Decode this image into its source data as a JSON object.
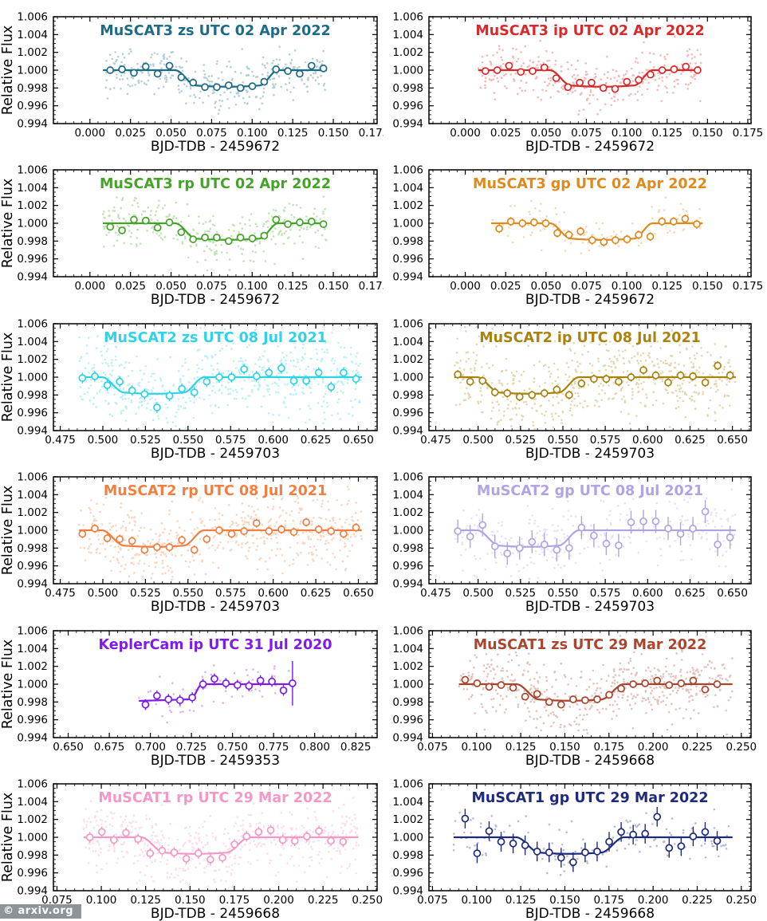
{
  "watermark": {
    "text": "© arxiv.org",
    "bg_color": "#8e9398",
    "text_color": "#ffffff"
  },
  "y_axis": {
    "label": "Relative Flux",
    "tick_labels": [
      "0.994",
      "0.996",
      "0.998",
      "1.000",
      "1.002",
      "1.004",
      "1.006"
    ],
    "range": [
      0.994,
      1.006
    ]
  },
  "chart_data": [
    {
      "type": "scatter",
      "title": "MuSCAT3 zs UTC 02 Apr 2022",
      "color": "#1e6b85",
      "column": "left",
      "xlabel": "BJD-TDB - 2459672",
      "ylabel": "Relative Flux",
      "x_range": [
        -0.0225,
        0.177
      ],
      "x_tick_labels": [
        "0.000",
        "0.025",
        "0.050",
        "0.075",
        "0.100",
        "0.125",
        "0.150",
        "0.175"
      ],
      "model": {
        "x_start": 0.008,
        "t1": 0.0525,
        "t2": 0.0655,
        "t3": 0.1045,
        "t4": 0.116,
        "x_end": 0.146,
        "depth_edge": 0.00172,
        "depth_extra": 0.00014
      },
      "binned_x": [
        0.0125,
        0.0198,
        0.0271,
        0.0344,
        0.0417,
        0.049,
        0.0563,
        0.0636,
        0.0709,
        0.0782,
        0.0855,
        0.0928,
        0.1001,
        0.1074,
        0.1147,
        0.122,
        0.1293,
        0.1366,
        0.1439
      ],
      "binned_y": [
        1.0,
        1.0001,
        0.9997,
        1.0004,
        0.9996,
        1.0005,
        0.9992,
        0.9986,
        0.9981,
        0.9981,
        0.9983,
        0.998,
        0.9982,
        0.9987,
        1.0001,
        0.9999,
        0.9996,
        1.0005,
        1.0002
      ],
      "binned_yerr": 0.0002,
      "scatter_noise": {
        "n": 340,
        "sigma": 0.0013,
        "seed": 101
      }
    },
    {
      "type": "scatter",
      "title": "MuSCAT3 ip UTC 02 Apr 2022",
      "color": "#d8292b",
      "column": "right",
      "xlabel": "BJD-TDB - 2459672",
      "ylabel": "",
      "x_range": [
        -0.0225,
        0.177
      ],
      "x_tick_labels": [
        "0.000",
        "0.025",
        "0.050",
        "0.075",
        "0.100",
        "0.125",
        "0.150",
        "0.175"
      ],
      "model": {
        "x_start": 0.008,
        "t1": 0.0525,
        "t2": 0.0655,
        "t3": 0.1045,
        "t4": 0.116,
        "x_end": 0.146,
        "depth_edge": 0.00172,
        "depth_extra": 0.00014
      },
      "binned_x": [
        0.0125,
        0.0198,
        0.0271,
        0.0344,
        0.0417,
        0.049,
        0.0563,
        0.0636,
        0.0709,
        0.0782,
        0.0855,
        0.0928,
        0.1001,
        0.1074,
        0.1147,
        0.122,
        0.1293,
        0.1366,
        0.1439
      ],
      "binned_y": [
        0.9999,
        1.0,
        1.0005,
        0.9998,
        0.9999,
        1.0003,
        0.9991,
        0.9981,
        0.9986,
        0.9986,
        0.998,
        0.9979,
        0.9987,
        0.9989,
        0.9995,
        1.0,
        1.0001,
        1.0004,
        1.0
      ],
      "binned_yerr": 0.0004,
      "scatter_noise": {
        "n": 340,
        "sigma": 0.0014,
        "seed": 102
      }
    },
    {
      "type": "scatter",
      "title": "MuSCAT3 rp UTC 02 Apr 2022",
      "color": "#46a32a",
      "column": "left",
      "xlabel": "BJD-TDB - 2459672",
      "ylabel": "Relative Flux",
      "x_range": [
        -0.0225,
        0.177
      ],
      "x_tick_labels": [
        "0.000",
        "0.025",
        "0.050",
        "0.075",
        "0.100",
        "0.125",
        "0.150",
        "0.175"
      ],
      "model": {
        "x_start": 0.008,
        "t1": 0.0525,
        "t2": 0.0655,
        "t3": 0.1045,
        "t4": 0.116,
        "x_end": 0.146,
        "depth_edge": 0.00172,
        "depth_extra": 0.00014
      },
      "binned_x": [
        0.0125,
        0.0198,
        0.0271,
        0.0344,
        0.0417,
        0.049,
        0.0563,
        0.0636,
        0.0709,
        0.0782,
        0.0855,
        0.0928,
        0.1001,
        0.1074,
        0.1147,
        0.122,
        0.1293,
        0.1366,
        0.1439
      ],
      "binned_y": [
        0.9996,
        0.9992,
        1.0004,
        1.0003,
        0.9995,
        1.0001,
        0.999,
        0.9982,
        0.9984,
        0.9984,
        0.998,
        0.9984,
        0.9983,
        0.9986,
        1.0004,
        0.9999,
        1.0001,
        1.0002,
        0.9999
      ],
      "binned_yerr": 0.0004,
      "scatter_noise": {
        "n": 320,
        "sigma": 0.0013,
        "seed": 103
      }
    },
    {
      "type": "scatter",
      "title": "MuSCAT3 gp UTC 02 Apr 2022",
      "color": "#dd8a1e",
      "column": "right",
      "xlabel": "BJD-TDB - 2459672",
      "ylabel": "",
      "x_range": [
        -0.0225,
        0.177
      ],
      "x_tick_labels": [
        "0.000",
        "0.025",
        "0.050",
        "0.075",
        "0.100",
        "0.125",
        "0.150",
        "0.175"
      ],
      "model": {
        "x_start": 0.016,
        "t1": 0.0525,
        "t2": 0.0655,
        "t3": 0.1045,
        "t4": 0.116,
        "x_end": 0.147,
        "depth_edge": 0.00172,
        "depth_extra": 0.00014
      },
      "binned_x": [
        0.021,
        0.0282,
        0.0354,
        0.0426,
        0.0498,
        0.057,
        0.0642,
        0.0714,
        0.0786,
        0.0858,
        0.093,
        0.1002,
        0.1074,
        0.1146,
        0.1218,
        0.129,
        0.1362,
        0.1434
      ],
      "binned_y": [
        0.9994,
        1.0002,
        1.0,
        1.0001,
        1.0,
        0.9989,
        0.9987,
        0.9991,
        0.9981,
        0.9979,
        0.9981,
        0.9982,
        0.9987,
        0.9985,
        1.0002,
        1.0002,
        1.0005,
        0.9999
      ],
      "binned_yerr": 0.0005,
      "scatter_noise": {
        "n": 100,
        "sigma": 0.0011,
        "seed": 104
      }
    },
    {
      "type": "scatter",
      "title": "MuSCAT2 zs UTC 08 Jul 2021",
      "color": "#2ed3e6",
      "column": "left",
      "xlabel": "BJD-TDB - 2459703",
      "ylabel": "Relative Flux",
      "x_range": [
        0.471,
        0.661
      ],
      "x_tick_labels": [
        "0.475",
        "0.500",
        "0.525",
        "0.550",
        "0.575",
        "0.600",
        "0.625",
        "0.650"
      ],
      "model": {
        "x_start": 0.486,
        "t1": 0.4995,
        "t2": 0.5125,
        "t3": 0.5475,
        "t4": 0.5595,
        "x_end": 0.652,
        "depth_edge": 0.00172,
        "depth_extra": 0.00014
      },
      "binned_x": [
        0.488,
        0.4953,
        0.5026,
        0.5099,
        0.5172,
        0.5245,
        0.5318,
        0.5391,
        0.5464,
        0.5537,
        0.561,
        0.5683,
        0.5756,
        0.5829,
        0.5902,
        0.5975,
        0.6048,
        0.6121,
        0.6194,
        0.6267,
        0.634,
        0.6413,
        0.6486
      ],
      "binned_y": [
        0.9999,
        1.0001,
        0.9991,
        0.9995,
        0.9985,
        0.9981,
        0.9966,
        0.9979,
        0.9987,
        0.9983,
        0.9995,
        1.0,
        1.0,
        1.0009,
        1.0001,
        1.0005,
        1.001,
        0.9996,
        0.9996,
        1.0005,
        0.9989,
        1.0005,
        0.9998
      ],
      "binned_yerr": 0.0006,
      "scatter_noise": {
        "n": 560,
        "sigma": 0.0022,
        "seed": 105
      }
    },
    {
      "type": "scatter",
      "title": "MuSCAT2 ip UTC 08 Jul 2021",
      "color": "#a9830f",
      "column": "right",
      "xlabel": "BJD-TDB - 2459703",
      "ylabel": "",
      "x_range": [
        0.471,
        0.661
      ],
      "x_tick_labels": [
        "0.475",
        "0.500",
        "0.525",
        "0.550",
        "0.575",
        "0.600",
        "0.625",
        "0.650"
      ],
      "model": {
        "x_start": 0.486,
        "t1": 0.4995,
        "t2": 0.5125,
        "t3": 0.5475,
        "t4": 0.5595,
        "x_end": 0.652,
        "depth_edge": 0.00172,
        "depth_extra": 0.00014
      },
      "binned_x": [
        0.488,
        0.4953,
        0.5026,
        0.5099,
        0.5172,
        0.5245,
        0.5318,
        0.5391,
        0.5464,
        0.5537,
        0.561,
        0.5683,
        0.5756,
        0.5829,
        0.5902,
        0.5975,
        0.6048,
        0.6121,
        0.6194,
        0.6267,
        0.634,
        0.6413,
        0.6486
      ],
      "binned_y": [
        1.0003,
        0.9995,
        0.9996,
        0.9983,
        0.9982,
        0.9978,
        0.998,
        0.9982,
        0.9986,
        0.998,
        0.9993,
        0.9998,
        0.9998,
        0.9995,
        1.0,
        1.0008,
        1.0002,
        0.9994,
        1.0002,
        1.0001,
        0.9994,
        1.0013,
        1.0002
      ],
      "binned_yerr": 0.0005,
      "scatter_noise": {
        "n": 560,
        "sigma": 0.0022,
        "seed": 106
      }
    },
    {
      "type": "scatter",
      "title": "MuSCAT2 rp UTC 08 Jul 2021",
      "color": "#f07f42",
      "column": "left",
      "xlabel": "BJD-TDB - 2459703",
      "ylabel": "Relative Flux",
      "x_range": [
        0.471,
        0.661
      ],
      "x_tick_labels": [
        "0.475",
        "0.500",
        "0.525",
        "0.550",
        "0.575",
        "0.600",
        "0.625",
        "0.650"
      ],
      "model": {
        "x_start": 0.486,
        "t1": 0.4995,
        "t2": 0.5125,
        "t3": 0.5475,
        "t4": 0.5595,
        "x_end": 0.652,
        "depth_edge": 0.00172,
        "depth_extra": 0.00014
      },
      "binned_x": [
        0.488,
        0.4953,
        0.5026,
        0.5099,
        0.5172,
        0.5245,
        0.5318,
        0.5391,
        0.5464,
        0.5537,
        0.561,
        0.5683,
        0.5756,
        0.5829,
        0.5902,
        0.5975,
        0.6048,
        0.6121,
        0.6194,
        0.6267,
        0.634,
        0.6413,
        0.6486
      ],
      "binned_y": [
        0.9996,
        1.0002,
        0.9991,
        0.999,
        0.9988,
        0.9978,
        0.9981,
        0.9981,
        0.9989,
        0.9978,
        0.999,
        1.0,
        0.9996,
        0.9999,
        1.0008,
        0.9999,
        1.0001,
        0.9998,
        1.0009,
        1.0001,
        0.9999,
        0.9996,
        1.0003
      ],
      "binned_yerr": 0.0005,
      "scatter_noise": {
        "n": 540,
        "sigma": 0.0021,
        "seed": 107
      }
    },
    {
      "type": "scatter",
      "title": "MuSCAT2 gp UTC 08 Jul 2021",
      "color": "#b3a3e3",
      "column": "right",
      "xlabel": "BJD-TDB - 2459703",
      "ylabel": "",
      "x_range": [
        0.471,
        0.661
      ],
      "x_tick_labels": [
        "0.475",
        "0.500",
        "0.525",
        "0.550",
        "0.575",
        "0.600",
        "0.625",
        "0.650"
      ],
      "model": {
        "x_start": 0.486,
        "t1": 0.4995,
        "t2": 0.5125,
        "t3": 0.5475,
        "t4": 0.5595,
        "x_end": 0.652,
        "depth_edge": 0.00172,
        "depth_extra": 0.00014
      },
      "binned_x": [
        0.488,
        0.4953,
        0.5026,
        0.5099,
        0.5172,
        0.5245,
        0.5318,
        0.5391,
        0.5464,
        0.5537,
        0.561,
        0.5683,
        0.5756,
        0.5829,
        0.5902,
        0.5975,
        0.6048,
        0.6121,
        0.6194,
        0.6267,
        0.634,
        0.6413,
        0.6486
      ],
      "binned_y": [
        0.9999,
        0.9993,
        1.0006,
        0.9982,
        0.9974,
        0.998,
        0.9987,
        0.9984,
        0.9978,
        0.998,
        1.0003,
        0.9994,
        0.9985,
        0.9983,
        1.0009,
        1.001,
        1.001,
        1.0002,
        0.9996,
        1.0002,
        1.0021,
        0.9984,
        0.9992
      ],
      "binned_yerr": 0.0013,
      "scatter_noise": {
        "n": 260,
        "sigma": 0.0019,
        "seed": 108
      }
    },
    {
      "type": "scatter",
      "title": "KeplerCam ip UTC 31 Jul 2020",
      "color": "#7e1de6",
      "column": "left",
      "xlabel": "BJD-TDB - 2459353",
      "ylabel": "Relative Flux",
      "x_range": [
        0.641,
        0.838
      ],
      "x_tick_labels": [
        "0.650",
        "0.675",
        "0.700",
        "0.725",
        "0.750",
        "0.775",
        "0.800",
        "0.825"
      ],
      "model": {
        "x_start": 0.693,
        "t1": null,
        "t2": null,
        "t3": 0.7245,
        "t4": 0.7315,
        "x_end": 0.787,
        "bottom_start": 0.99812,
        "bottom_end": 0.9983
      },
      "binned_x": [
        0.697,
        0.704,
        0.711,
        0.718,
        0.7255,
        0.732,
        0.739,
        0.746,
        0.753,
        0.76,
        0.767,
        0.774,
        0.781,
        0.7865
      ],
      "binned_y": [
        0.9977,
        0.9987,
        0.9983,
        0.9982,
        0.9985,
        1.0,
        1.0006,
        1.0001,
        0.9999,
        0.9998,
        1.0004,
        1.0003,
        0.9993,
        1.0001
      ],
      "binned_yerr": 0.0006,
      "binned_yerr_last": 0.0025,
      "scatter_noise": {
        "n": 65,
        "sigma": 0.0012,
        "seed": 109
      }
    },
    {
      "type": "scatter",
      "title": "MuSCAT1 zs UTC 29 Mar 2022",
      "color": "#a8452f",
      "column": "right",
      "xlabel": "BJD-TDB - 2459668",
      "ylabel": "",
      "x_range": [
        0.073,
        0.2555
      ],
      "x_tick_labels": [
        "0.075",
        "0.100",
        "0.125",
        "0.150",
        "0.175",
        "0.200",
        "0.225",
        "0.250"
      ],
      "model": {
        "x_start": 0.09,
        "t1": 0.1225,
        "t2": 0.1355,
        "t3": 0.1705,
        "t4": 0.1835,
        "x_end": 0.245,
        "depth_edge": 0.00172,
        "depth_extra": 0.00014
      },
      "binned_x": [
        0.0935,
        0.1003,
        0.1071,
        0.1139,
        0.1207,
        0.1275,
        0.1343,
        0.1411,
        0.1479,
        0.1547,
        0.1615,
        0.1683,
        0.1751,
        0.1819,
        0.1887,
        0.1955,
        0.2023,
        0.2091,
        0.2159,
        0.2227,
        0.2295,
        0.2363
      ],
      "binned_y": [
        1.0005,
        1.0001,
        0.9997,
        0.9999,
        0.9996,
        0.9986,
        0.9989,
        0.998,
        0.9977,
        0.9983,
        0.9982,
        0.9983,
        0.9988,
        0.9995,
        1.0,
        1.0001,
        1.0004,
        0.9999,
        1.0001,
        1.0004,
        0.9994,
        1.0
      ],
      "binned_yerr": 0.0003,
      "scatter_noise": {
        "n": 520,
        "sigma": 0.0019,
        "seed": 110
      }
    },
    {
      "type": "scatter",
      "title": "MuSCAT1 rp UTC 29 Mar 2022",
      "color": "#f498c5",
      "column": "left",
      "xlabel": "BJD-TDB - 2459668",
      "ylabel": "Relative Flux",
      "x_range": [
        0.073,
        0.2555
      ],
      "x_tick_labels": [
        "0.075",
        "0.100",
        "0.125",
        "0.150",
        "0.175",
        "0.200",
        "0.225",
        "0.250"
      ],
      "model": {
        "x_start": 0.09,
        "t1": 0.1225,
        "t2": 0.1355,
        "t3": 0.1705,
        "t4": 0.1835,
        "x_end": 0.245,
        "depth_edge": 0.00172,
        "depth_extra": 0.00014
      },
      "binned_x": [
        0.0935,
        0.1003,
        0.1071,
        0.1139,
        0.1207,
        0.1275,
        0.1343,
        0.1411,
        0.1479,
        0.1547,
        0.1615,
        0.1683,
        0.1751,
        0.1819,
        0.1887,
        0.1955,
        0.2023,
        0.2091,
        0.2159,
        0.2227,
        0.2295,
        0.2363
      ],
      "binned_y": [
        1.0,
        1.0006,
        0.9997,
        1.0005,
        0.9998,
        0.9982,
        0.9985,
        0.9983,
        0.9976,
        0.9982,
        0.9975,
        0.9977,
        0.9992,
        1.0001,
        1.0006,
        1.0008,
        0.9997,
        0.9996,
        1.0001,
        1.0007,
        0.9996,
        0.9995
      ],
      "binned_yerr": 0.0006,
      "scatter_noise": {
        "n": 500,
        "sigma": 0.0019,
        "seed": 111
      }
    },
    {
      "type": "scatter",
      "title": "MuSCAT1 gp UTC 29 Mar 2022",
      "color": "#1e2b7d",
      "column": "right",
      "xlabel": "BJD-TDB - 2459668",
      "ylabel": "",
      "x_range": [
        0.073,
        0.2555
      ],
      "x_tick_labels": [
        "0.075",
        "0.100",
        "0.125",
        "0.150",
        "0.175",
        "0.200",
        "0.225",
        "0.250"
      ],
      "model": {
        "x_start": 0.087,
        "t1": 0.1225,
        "t2": 0.1355,
        "t3": 0.1705,
        "t4": 0.1835,
        "x_end": 0.245,
        "depth_edge": 0.00172,
        "depth_extra": 0.00014
      },
      "binned_x": [
        0.0935,
        0.1003,
        0.1071,
        0.1139,
        0.1207,
        0.1275,
        0.1343,
        0.1411,
        0.1479,
        0.1547,
        0.1615,
        0.1683,
        0.1751,
        0.1819,
        0.1887,
        0.1955,
        0.2023,
        0.2091,
        0.2159,
        0.2227,
        0.2295,
        0.2363
      ],
      "binned_y": [
        1.0021,
        0.9982,
        1.0007,
        0.9995,
        0.9993,
        0.9991,
        0.9984,
        0.9983,
        0.9977,
        0.9972,
        0.9983,
        0.9984,
        0.9995,
        1.0006,
        1.0003,
        1.0004,
        1.0023,
        0.9988,
        0.999,
        1.0001,
        1.0006,
        0.9996
      ],
      "binned_yerr": 0.0011,
      "scatter_noise": {
        "n": 140,
        "sigma": 0.0015,
        "seed": 112
      }
    }
  ]
}
